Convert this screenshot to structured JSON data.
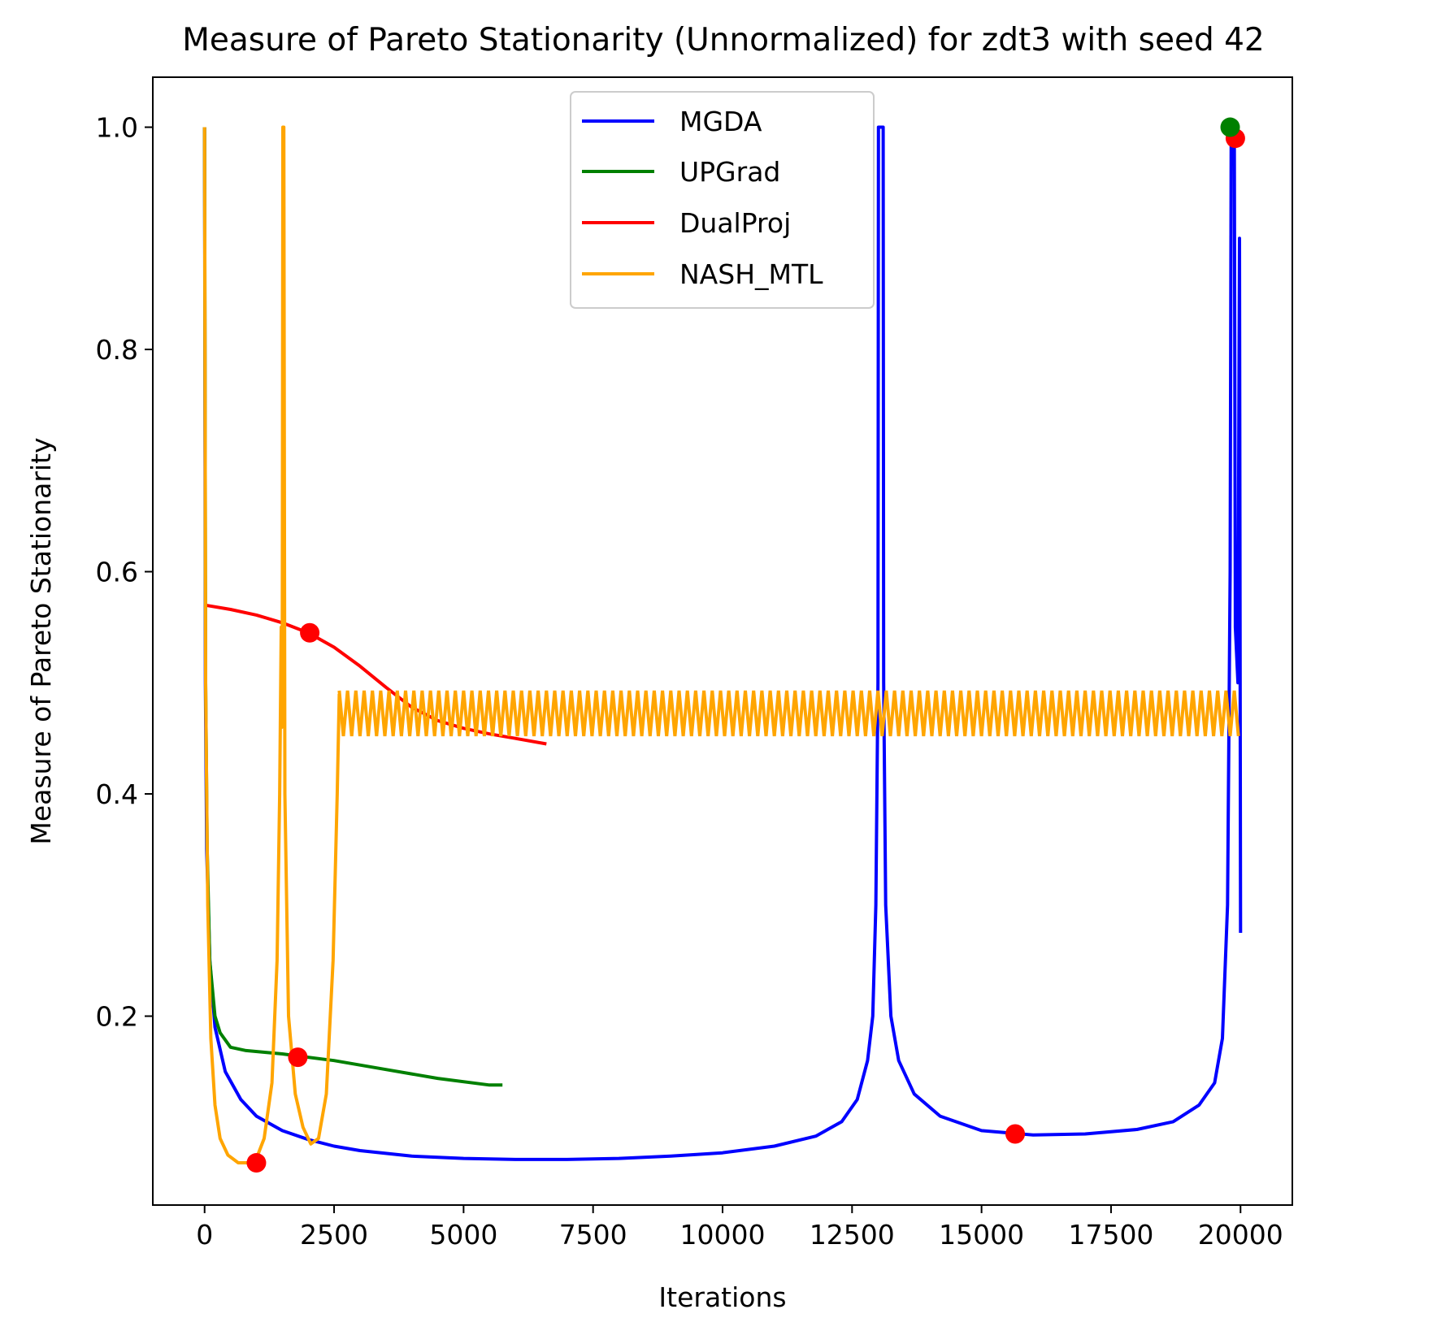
{
  "chart_data": {
    "type": "line",
    "title": "Measure of Pareto Stationarity (Unnormalized) for zdt3 with seed 42",
    "xlabel": "Iterations",
    "ylabel": "Measure of Pareto Stationarity",
    "xlim": [
      -1000,
      21000
    ],
    "ylim": [
      0.03,
      1.045
    ],
    "x_ticks": [
      0,
      2500,
      5000,
      7500,
      10000,
      12500,
      15000,
      17500,
      20000
    ],
    "x_tick_labels": [
      "0",
      "2500",
      "5000",
      "7500",
      "10000",
      "12500",
      "15000",
      "17500",
      "20000"
    ],
    "y_ticks": [
      0.2,
      0.4,
      0.6,
      0.8,
      1.0
    ],
    "y_tick_labels": [
      "0.2",
      "0.4",
      "0.6",
      "0.8",
      "1.0"
    ],
    "grid": false,
    "legend_position": "top-center",
    "series": [
      {
        "name": "MGDA",
        "color": "#0000ff",
        "points": [
          [
            0,
            1.0
          ],
          [
            15,
            0.5
          ],
          [
            40,
            0.35
          ],
          [
            100,
            0.25
          ],
          [
            200,
            0.19
          ],
          [
            400,
            0.15
          ],
          [
            700,
            0.125
          ],
          [
            1000,
            0.11
          ],
          [
            1500,
            0.097
          ],
          [
            2000,
            0.089
          ],
          [
            2500,
            0.083
          ],
          [
            3000,
            0.079
          ],
          [
            4000,
            0.074
          ],
          [
            5000,
            0.072
          ],
          [
            6000,
            0.071
          ],
          [
            7000,
            0.071
          ],
          [
            8000,
            0.072
          ],
          [
            9000,
            0.074
          ],
          [
            10000,
            0.077
          ],
          [
            11000,
            0.083
          ],
          [
            11800,
            0.092
          ],
          [
            12300,
            0.105
          ],
          [
            12600,
            0.125
          ],
          [
            12800,
            0.16
          ],
          [
            12900,
            0.2
          ],
          [
            12960,
            0.3
          ],
          [
            13000,
            0.5
          ],
          [
            13010,
            1.0
          ],
          [
            13100,
            1.0
          ],
          [
            13110,
            0.5
          ],
          [
            13150,
            0.3
          ],
          [
            13250,
            0.2
          ],
          [
            13400,
            0.16
          ],
          [
            13700,
            0.13
          ],
          [
            14200,
            0.11
          ],
          [
            15000,
            0.097
          ],
          [
            16000,
            0.093
          ],
          [
            17000,
            0.094
          ],
          [
            18000,
            0.098
          ],
          [
            18700,
            0.105
          ],
          [
            19200,
            0.12
          ],
          [
            19500,
            0.14
          ],
          [
            19650,
            0.18
          ],
          [
            19750,
            0.3
          ],
          [
            19800,
            0.6
          ],
          [
            19820,
            1.0
          ],
          [
            19880,
            1.0
          ],
          [
            19900,
            0.55
          ],
          [
            19950,
            0.5
          ],
          [
            19980,
            0.9
          ],
          [
            20000,
            0.275
          ]
        ]
      },
      {
        "name": "UPGrad",
        "color": "#008000",
        "points": [
          [
            0,
            1.0
          ],
          [
            20,
            0.5
          ],
          [
            50,
            0.35
          ],
          [
            100,
            0.25
          ],
          [
            200,
            0.2
          ],
          [
            300,
            0.185
          ],
          [
            500,
            0.172
          ],
          [
            800,
            0.169
          ],
          [
            1500,
            0.166
          ],
          [
            2500,
            0.16
          ],
          [
            3500,
            0.152
          ],
          [
            4500,
            0.144
          ],
          [
            5500,
            0.138
          ],
          [
            5750,
            0.138
          ]
        ]
      },
      {
        "name": "DualProj",
        "color": "#ff0000",
        "points": [
          [
            0,
            0.57
          ],
          [
            500,
            0.566
          ],
          [
            1000,
            0.561
          ],
          [
            1500,
            0.554
          ],
          [
            2000,
            0.545
          ],
          [
            2500,
            0.532
          ],
          [
            3000,
            0.515
          ],
          [
            3500,
            0.496
          ],
          [
            4000,
            0.478
          ],
          [
            4500,
            0.466
          ],
          [
            5000,
            0.459
          ],
          [
            5500,
            0.454
          ],
          [
            6000,
            0.45
          ],
          [
            6600,
            0.445
          ]
        ]
      },
      {
        "name": "NASH_MTL",
        "color": "#ffa500",
        "points": [
          [
            0,
            1.0
          ],
          [
            20,
            0.5
          ],
          [
            60,
            0.3
          ],
          [
            120,
            0.18
          ],
          [
            200,
            0.12
          ],
          [
            300,
            0.09
          ],
          [
            450,
            0.075
          ],
          [
            650,
            0.068
          ],
          [
            850,
            0.068
          ],
          [
            1000,
            0.072
          ],
          [
            1150,
            0.09
          ],
          [
            1300,
            0.14
          ],
          [
            1400,
            0.25
          ],
          [
            1450,
            0.4
          ],
          [
            1480,
            0.55
          ],
          [
            1490,
            0.46
          ],
          [
            1500,
            0.53
          ],
          [
            1510,
            1.0
          ],
          [
            1530,
            1.0
          ],
          [
            1550,
            0.4
          ],
          [
            1620,
            0.2
          ],
          [
            1750,
            0.13
          ],
          [
            1900,
            0.1
          ],
          [
            2050,
            0.085
          ],
          [
            2200,
            0.09
          ],
          [
            2350,
            0.13
          ],
          [
            2480,
            0.25
          ],
          [
            2560,
            0.4
          ],
          [
            2600,
            0.49
          ]
        ],
        "band": {
          "x_start": 2600,
          "x_end": 20000,
          "y_low": 0.452,
          "y_high": 0.493
        }
      }
    ],
    "markers": [
      {
        "color": "#ff0000",
        "x": 1000,
        "y": 0.068
      },
      {
        "color": "#ff0000",
        "x": 1800,
        "y": 0.163
      },
      {
        "color": "#ff0000",
        "x": 2030,
        "y": 0.545
      },
      {
        "color": "#ff0000",
        "x": 15650,
        "y": 0.094
      },
      {
        "color": "#ff0000",
        "x": 19900,
        "y": 0.99
      },
      {
        "color": "#008000",
        "x": 19800,
        "y": 1.0
      }
    ]
  }
}
